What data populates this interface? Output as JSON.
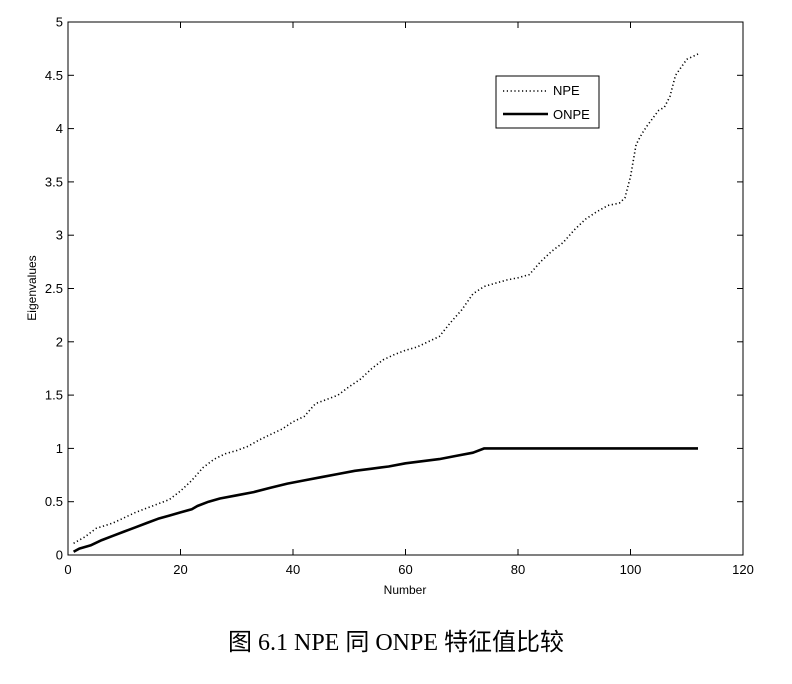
{
  "caption": "图 6.1 NPE 同 ONPE 特征值比较",
  "chart_data": {
    "type": "line",
    "xlabel": "Number",
    "ylabel": "Eigenvalues",
    "xlim": [
      0,
      120
    ],
    "ylim": [
      0,
      5
    ],
    "xticks": [
      0,
      20,
      40,
      60,
      80,
      100,
      120
    ],
    "yticks": [
      0,
      0.5,
      1,
      1.5,
      2,
      2.5,
      3,
      3.5,
      4,
      4.5,
      5
    ],
    "grid": false,
    "legend_position": "top-right",
    "series": [
      {
        "name": "NPE",
        "style": "dotted",
        "color": "#000000",
        "x": [
          1,
          3,
          5,
          8,
          10,
          12,
          15,
          18,
          20,
          22,
          24,
          26,
          28,
          30,
          32,
          34,
          36,
          38,
          40,
          42,
          44,
          46,
          48,
          50,
          52,
          54,
          56,
          58,
          60,
          62,
          64,
          66,
          68,
          70,
          72,
          74,
          76,
          78,
          80,
          82,
          84,
          86,
          88,
          90,
          92,
          94,
          96,
          98,
          99,
          100,
          101,
          102,
          103,
          104,
          105,
          106,
          107,
          108,
          110,
          112
        ],
        "y": [
          0.11,
          0.17,
          0.25,
          0.3,
          0.35,
          0.4,
          0.46,
          0.52,
          0.6,
          0.7,
          0.82,
          0.9,
          0.95,
          0.98,
          1.02,
          1.08,
          1.13,
          1.18,
          1.25,
          1.3,
          1.42,
          1.46,
          1.5,
          1.58,
          1.65,
          1.75,
          1.83,
          1.88,
          1.92,
          1.95,
          2.0,
          2.05,
          2.18,
          2.3,
          2.45,
          2.52,
          2.55,
          2.58,
          2.6,
          2.63,
          2.75,
          2.85,
          2.93,
          3.05,
          3.15,
          3.22,
          3.28,
          3.3,
          3.35,
          3.55,
          3.85,
          3.95,
          4.03,
          4.1,
          4.17,
          4.2,
          4.3,
          4.5,
          4.65,
          4.7
        ]
      },
      {
        "name": "ONPE",
        "style": "solid",
        "color": "#000000",
        "x": [
          1,
          2,
          4,
          6,
          8,
          10,
          12,
          14,
          16,
          18,
          20,
          22,
          23,
          25,
          27,
          30,
          33,
          36,
          39,
          42,
          45,
          48,
          51,
          54,
          57,
          60,
          63,
          66,
          69,
          72,
          74,
          80,
          90,
          100,
          112
        ],
        "y": [
          0.03,
          0.06,
          0.09,
          0.14,
          0.18,
          0.22,
          0.26,
          0.3,
          0.34,
          0.37,
          0.4,
          0.43,
          0.46,
          0.5,
          0.53,
          0.56,
          0.59,
          0.63,
          0.67,
          0.7,
          0.73,
          0.76,
          0.79,
          0.81,
          0.83,
          0.86,
          0.88,
          0.9,
          0.93,
          0.96,
          1.0,
          1.0,
          1.0,
          1.0,
          1.0
        ]
      }
    ]
  }
}
